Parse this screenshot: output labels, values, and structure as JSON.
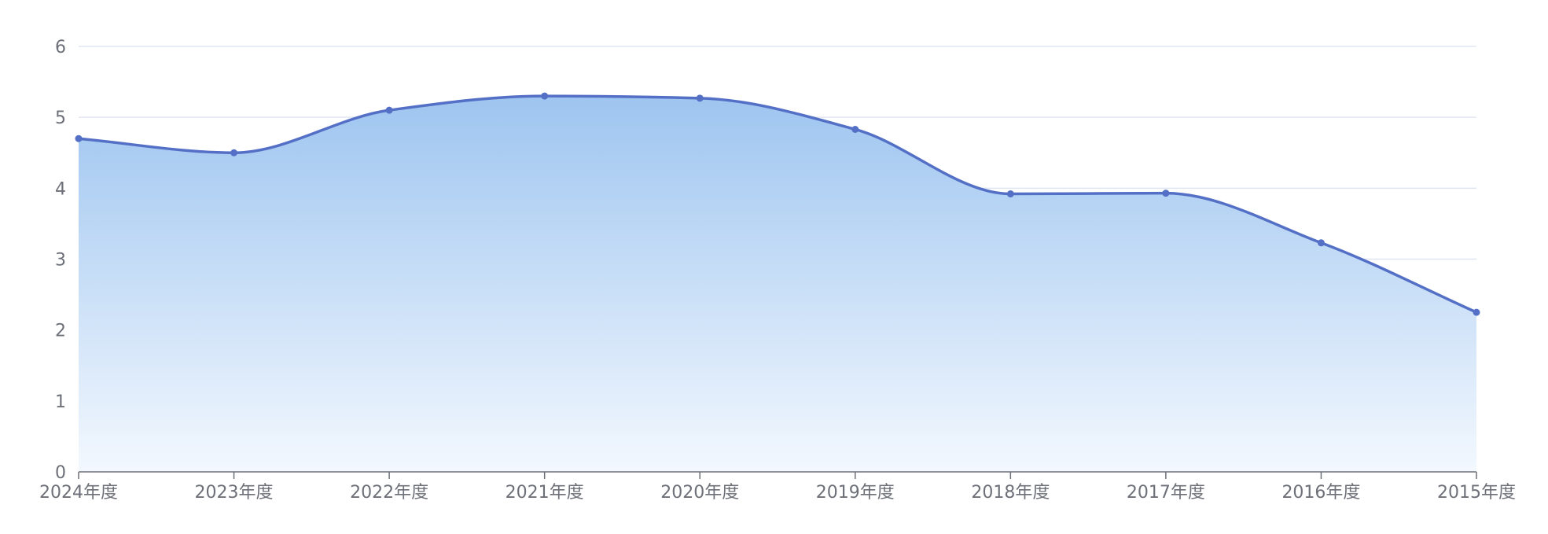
{
  "chart_data": {
    "type": "area",
    "title": "",
    "xlabel": "",
    "ylabel": "",
    "categories": [
      "2024年度",
      "2023年度",
      "2022年度",
      "2021年度",
      "2020年度",
      "2019年度",
      "2018年度",
      "2017年度",
      "2016年度",
      "2015年度"
    ],
    "series": [
      {
        "values": [
          4.7,
          4.5,
          5.1,
          5.3,
          5.27,
          4.83,
          3.92,
          3.93,
          3.23,
          2.25
        ]
      }
    ],
    "yticks": [
      "0",
      "1",
      "2",
      "3",
      "4",
      "5",
      "6"
    ],
    "ylim": [
      0,
      6
    ],
    "grid": true,
    "legend": "none",
    "colors": {
      "line": "#5470c6",
      "area_top": "#9ec5f0",
      "area_bottom": "#f3f8fe",
      "grid": "#e0e6f1",
      "axis": "#6e7079"
    }
  }
}
